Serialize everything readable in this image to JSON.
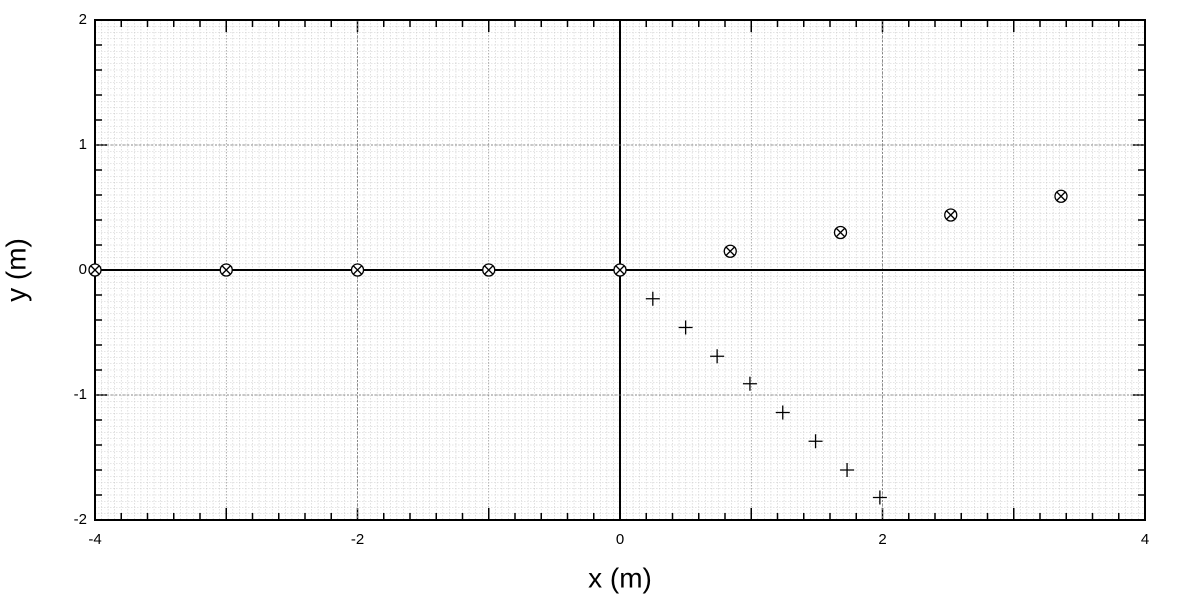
{
  "chart_data": {
    "type": "scatter",
    "xlabel": "x (m)",
    "ylabel": "y (m)",
    "xlim": [
      -4,
      4
    ],
    "ylim": [
      -2,
      2
    ],
    "xticks": [
      -4,
      -2,
      0,
      2,
      4
    ],
    "yticks": [
      -2,
      -1,
      0,
      1,
      2
    ],
    "grid": true,
    "series": [
      {
        "marker": "circle-x",
        "color": "#000000",
        "x": [
          -4,
          -3,
          -2,
          -1,
          0,
          0.84,
          1.68,
          2.52,
          3.36
        ],
        "values": [
          0,
          0,
          0,
          0,
          0,
          0.15,
          0.3,
          0.44,
          0.59
        ]
      },
      {
        "marker": "plus",
        "color": "#000000",
        "x": [
          0.25,
          0.5,
          0.74,
          0.99,
          1.24,
          1.49,
          1.73,
          1.98
        ],
        "values": [
          -0.23,
          -0.46,
          -0.69,
          -0.91,
          -1.14,
          -1.37,
          -1.6,
          -1.82
        ]
      }
    ]
  }
}
